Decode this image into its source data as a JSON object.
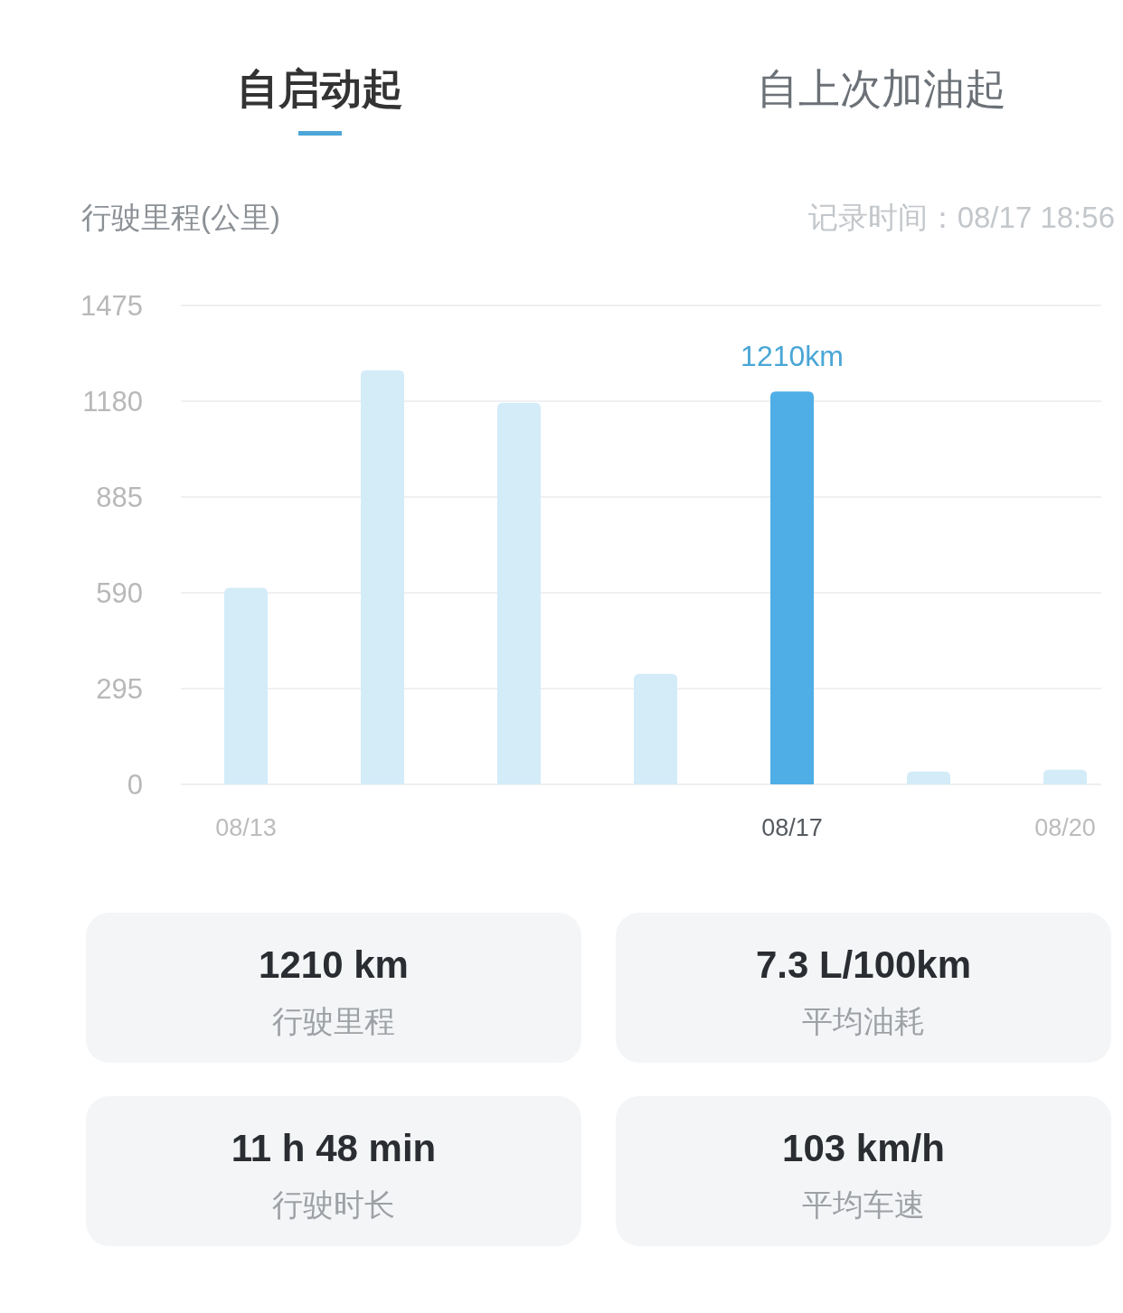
{
  "chart_data": [
    {
      "type": "bar",
      "title": "行驶里程(公里)",
      "subtitle": "记录时间：08/17 18:56",
      "annotations": [
        "自启动起",
        "自上次加油起"
      ],
      "categories": [
        "08/13",
        null,
        null,
        null,
        "08/17",
        null,
        "08/20"
      ],
      "values": [
        605,
        1275,
        1175,
        340,
        1210,
        40,
        45
      ],
      "colors": [
        "#d3ecf8",
        "#d3ecf8",
        "#d3ecf8",
        "#d3ecf8",
        "#4faee6",
        "#d3ecf8",
        "#d3ecf8"
      ],
      "value_labels": [
        null,
        null,
        null,
        null,
        "1210km",
        null,
        null
      ],
      "ylim": [
        0,
        1475
      ],
      "yticks": [
        0,
        295,
        590,
        885,
        1180,
        1475
      ],
      "grid": "y"
    },
    {
      "type": "other",
      "annotations": [
        "1210 km",
        "行驶里程",
        "7.3 L/100km",
        "平均油耗",
        "11 h 48 min",
        "行驶时长",
        "103 km/h",
        "平均车速"
      ]
    }
  ]
}
